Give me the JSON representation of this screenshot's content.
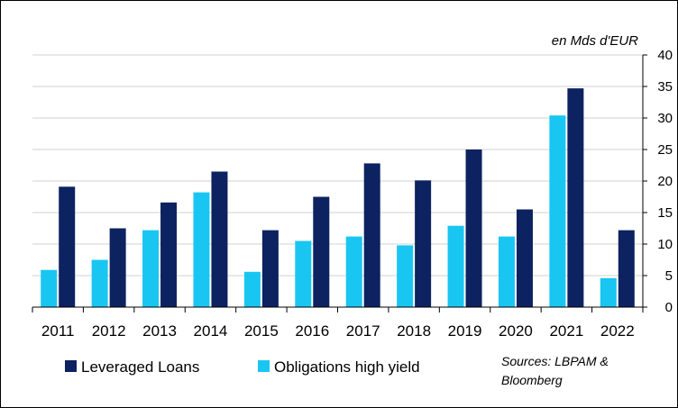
{
  "chart_data": {
    "type": "bar",
    "unit_label": "en Mds d'EUR",
    "categories": [
      "2011",
      "2012",
      "2013",
      "2014",
      "2015",
      "2016",
      "2017",
      "2018",
      "2019",
      "2020",
      "2021",
      "2022"
    ],
    "series": [
      {
        "name": "Leveraged Loans",
        "color": "#0d2260",
        "values": [
          19.1,
          12.5,
          16.6,
          21.5,
          12.2,
          17.5,
          22.8,
          20.1,
          25.0,
          15.5,
          34.7,
          12.2
        ]
      },
      {
        "name": "Obligations high yield",
        "color": "#19c6f2",
        "values": [
          5.9,
          7.5,
          12.2,
          18.2,
          5.6,
          10.5,
          11.2,
          9.8,
          12.9,
          11.2,
          30.4,
          4.6
        ]
      }
    ],
    "ylim": [
      0,
      40
    ],
    "yticks": [
      0,
      5,
      10,
      15,
      20,
      25,
      30,
      35,
      40
    ],
    "grid": true,
    "y_axis_side": "right",
    "legend_position": "bottom",
    "source_lines": [
      "Sources: LBPAM &",
      "Bloomberg"
    ]
  }
}
